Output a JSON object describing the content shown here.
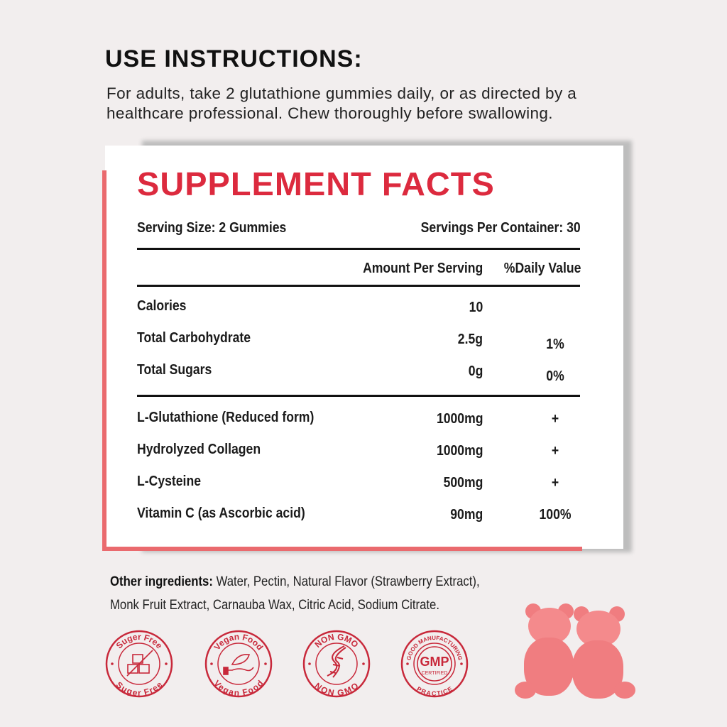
{
  "instructions": {
    "title": "USE INSTRUCTIONS:",
    "line1": "For adults, take 2 glutathione gummies daily, or as directed by a",
    "line2": "healthcare professional. Chew thoroughly before swallowing."
  },
  "facts": {
    "title": "SUPPLEMENT FACTS",
    "serving_size": "Serving Size: 2 Gummies",
    "servings_per_container": "Servings Per Container: 30",
    "col_amount": "Amount Per Serving",
    "col_dv": "%Daily Value",
    "rows": [
      {
        "name": "Calories",
        "amount": "10",
        "dv": ""
      },
      {
        "name": "Total Carbohydrate",
        "amount": "2.5g",
        "dv": "1%"
      },
      {
        "name": "Total Sugars",
        "amount": "0g",
        "dv": "0%"
      },
      {
        "name": "L-Glutathione (Reduced form)",
        "amount": "1000mg",
        "dv": "+"
      },
      {
        "name": "Hydrolyzed Collagen",
        "amount": "1000mg",
        "dv": "+"
      },
      {
        "name": "L-Cysteine",
        "amount": "500mg",
        "dv": "+"
      },
      {
        "name": "Vitamin C (as Ascorbic acid)",
        "amount": "90mg",
        "dv": "100%"
      }
    ]
  },
  "other": {
    "label": "Other ingredients:",
    "line1": " Water, Pectin, Natural Flavor (Strawberry Extract),",
    "line2": "Monk Fruit Extract, Carnauba Wax, Citric Acid, Sodium Citrate."
  },
  "badges": [
    {
      "top": "Suger Free",
      "bottom": "Suger Free",
      "icon": "sugar-cubes-crossed"
    },
    {
      "top": "Vegan Food",
      "bottom": "Vegan Food",
      "icon": "hand-leaf"
    },
    {
      "top": "NON GMO",
      "bottom": "NON GMO",
      "icon": "dna"
    },
    {
      "top": "GOOD MANUFACTURING",
      "bottom": "PRACTICE",
      "center": "GMP",
      "sub": "CERTIFIED",
      "icon": "gmp-seal"
    }
  ],
  "colors": {
    "accent": "#dc2a3e",
    "pink": "#ea6a6e",
    "badge": "#c8283a"
  }
}
